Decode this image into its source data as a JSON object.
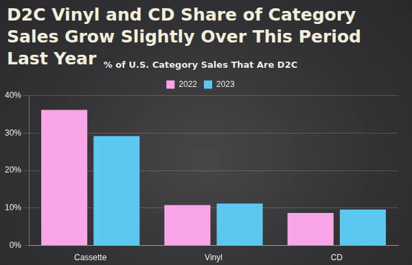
{
  "chart_data": {
    "type": "bar",
    "title": "D2C Vinyl and CD Share of Category Sales Grow Slightly Over This Period Last Year",
    "subtitle": "% of U.S. Category Sales That Are D2C",
    "categories": [
      "Cassette",
      "Vinyl",
      "CD"
    ],
    "series": [
      {
        "name": "2022",
        "color": "#f9a6e9",
        "values": [
          36.2,
          10.8,
          8.7
        ]
      },
      {
        "name": "2023",
        "color": "#5cc8ef",
        "values": [
          29.2,
          11.2,
          9.6
        ]
      }
    ],
    "ylim": [
      0,
      40
    ],
    "yticks": [
      {
        "value": 0,
        "label": "0%"
      },
      {
        "value": 10,
        "label": "10%"
      },
      {
        "value": 20,
        "label": "20%"
      },
      {
        "value": 30,
        "label": "30%"
      },
      {
        "value": 40,
        "label": "40%"
      }
    ],
    "grid": true,
    "legend": "top"
  }
}
